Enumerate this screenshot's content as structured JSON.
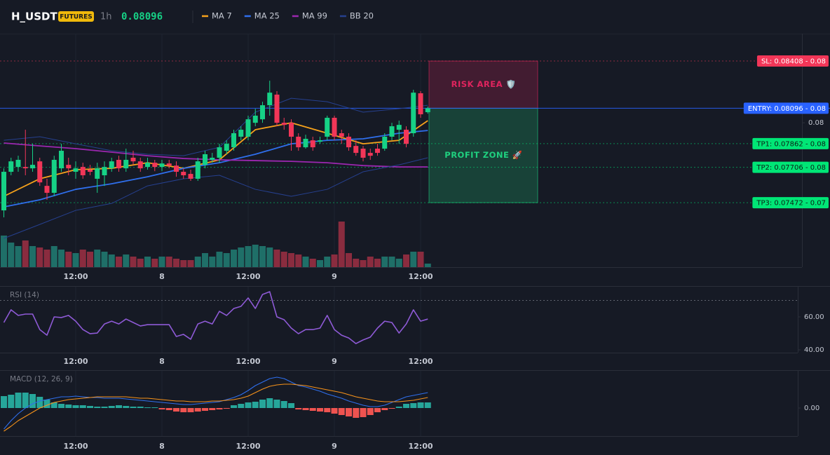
{
  "header": {
    "symbol": "H_USDT",
    "badge": "FUTURES",
    "interval": "1h",
    "last_price": 0.08096
  },
  "chart_data": [
    {
      "type": "candlestick",
      "categories": [
        null,
        null,
        null,
        null,
        null,
        null,
        null,
        null,
        null,
        null,
        "12:00",
        null,
        null,
        null,
        null,
        null,
        null,
        null,
        null,
        null,
        null,
        null,
        "8",
        null,
        null,
        null,
        null,
        null,
        null,
        null,
        null,
        null,
        null,
        null,
        "12:00",
        null,
        null,
        null,
        null,
        null,
        null,
        null,
        null,
        null,
        null,
        null,
        "9",
        null,
        null,
        null,
        null,
        null,
        null,
        null,
        null,
        null,
        null,
        null,
        "12:00",
        null
      ],
      "open": [
        0.07421,
        0.07676,
        0.07708,
        0.07708,
        0.07699,
        0.07745,
        0.07583,
        0.07537,
        0.07699,
        0.07722,
        0.07676,
        0.07708,
        0.0769,
        0.0763,
        0.07653,
        0.07699,
        0.07755,
        0.07699,
        0.07769,
        0.07745,
        0.07708,
        0.07736,
        0.07708,
        0.07731,
        0.07717,
        0.07676,
        0.07662,
        0.0763,
        0.07722,
        0.07755,
        0.07769,
        0.07815,
        0.07838,
        0.07908,
        0.07908,
        0.08,
        0.08023,
        0.08116,
        0.08186,
        0.08,
        0.08,
        0.07908,
        0.07838,
        0.07884,
        0.07875,
        0.07908,
        0.08033,
        0.07931,
        0.07908,
        0.07847,
        0.07829,
        0.07801,
        0.07829,
        0.07829,
        0.07908,
        0.07954,
        0.07954,
        0.07931,
        0.08195,
        0.0807
      ],
      "high": [
        0.07699,
        0.07769,
        0.07782,
        0.07954,
        0.07861,
        0.07769,
        0.0763,
        0.07782,
        0.07861,
        0.07769,
        0.07745,
        0.07736,
        0.07722,
        0.07736,
        0.07745,
        0.07769,
        0.07782,
        0.07829,
        0.07815,
        0.07769,
        0.07769,
        0.07755,
        0.07755,
        0.07755,
        0.07745,
        0.07699,
        0.0769,
        0.07769,
        0.07815,
        0.07801,
        0.07861,
        0.07884,
        0.07954,
        0.07977,
        0.08047,
        0.08093,
        0.08139,
        0.08278,
        0.08209,
        0.08033,
        0.08023,
        0.07931,
        0.07921,
        0.07908,
        0.07908,
        0.08047,
        0.08047,
        0.07954,
        0.07931,
        0.07884,
        0.07847,
        0.07829,
        0.07861,
        0.07931,
        0.08,
        0.08014,
        0.07977,
        0.08218,
        0.08209,
        0.08107
      ],
      "low": [
        0.07375,
        0.07653,
        0.07676,
        0.07653,
        0.07676,
        0.07583,
        0.07491,
        0.07514,
        0.07676,
        0.07653,
        0.0763,
        0.0763,
        0.07653,
        0.07537,
        0.07583,
        0.07676,
        0.07676,
        0.07676,
        0.07722,
        0.07676,
        0.0769,
        0.0768,
        0.0768,
        0.07699,
        0.07643,
        0.0763,
        0.07616,
        0.07616,
        0.07699,
        0.07736,
        0.07736,
        0.07792,
        0.07815,
        0.07884,
        0.07884,
        0.07977,
        0.08,
        0.08047,
        0.07977,
        0.07954,
        0.07815,
        0.07815,
        0.07829,
        0.07815,
        0.07861,
        0.07884,
        0.07884,
        0.07861,
        0.07815,
        0.07782,
        0.07745,
        0.07755,
        0.07782,
        0.07815,
        0.07884,
        0.07861,
        0.07838,
        0.07908,
        0.08033,
        0.0806
      ],
      "close": [
        0.07676,
        0.07745,
        0.07755,
        0.07699,
        0.07722,
        0.07606,
        0.07537,
        0.07755,
        0.07815,
        0.07699,
        0.07699,
        0.07653,
        0.07676,
        0.07699,
        0.07708,
        0.07745,
        0.07699,
        0.07755,
        0.07745,
        0.07699,
        0.07736,
        0.07708,
        0.07731,
        0.07717,
        0.07676,
        0.07653,
        0.0763,
        0.07745,
        0.07792,
        0.07769,
        0.07838,
        0.07861,
        0.07931,
        0.07954,
        0.08023,
        0.08047,
        0.08116,
        0.08199,
        0.08,
        0.07986,
        0.07908,
        0.07838,
        0.07894,
        0.07838,
        0.07884,
        0.08033,
        0.07908,
        0.07908,
        0.07838,
        0.07801,
        0.07769,
        0.07782,
        0.07801,
        0.07908,
        0.07977,
        0.07986,
        0.07861,
        0.08199,
        0.08056,
        0.08096
      ],
      "up_color": "#16d186",
      "down_color": "#f23658",
      "volume": [
        45,
        35,
        30,
        38,
        30,
        28,
        25,
        30,
        25,
        22,
        20,
        25,
        22,
        25,
        22,
        18,
        15,
        18,
        15,
        12,
        15,
        12,
        15,
        15,
        12,
        10,
        10,
        15,
        20,
        15,
        22,
        20,
        25,
        28,
        30,
        32,
        30,
        28,
        25,
        22,
        20,
        18,
        15,
        12,
        10,
        15,
        18,
        65,
        20,
        12,
        10,
        15,
        12,
        15,
        15,
        12,
        18,
        22,
        22,
        5
      ],
      "volume_lim": [
        0,
        70
      ],
      "volume_up_color": "#1f6f68",
      "volume_down_color": "#8a2c3f",
      "series": [
        {
          "name": "MA 7",
          "color": "#f7a21b",
          "x": [
            0,
            5,
            10,
            15,
            20,
            25,
            30,
            35,
            40,
            45,
            50,
            55,
            59
          ],
          "values": [
            0.07514,
            0.0763,
            0.0769,
            0.07699,
            0.07736,
            0.07699,
            0.07755,
            0.07954,
            0.08,
            0.07931,
            0.07861,
            0.07884,
            0.08014
          ]
        },
        {
          "name": "MA 25",
          "color": "#2f6fed",
          "x": [
            0,
            5,
            10,
            15,
            20,
            25,
            30,
            35,
            40,
            45,
            50,
            55,
            59
          ],
          "values": [
            0.07444,
            0.07491,
            0.0756,
            0.07597,
            0.07643,
            0.07699,
            0.07736,
            0.07792,
            0.07861,
            0.07884,
            0.07894,
            0.07931,
            0.07949
          ]
        },
        {
          "name": "MA 99",
          "color": "#9c27b0",
          "x": [
            0,
            5,
            10,
            15,
            20,
            25,
            30,
            35,
            40,
            45,
            50,
            55,
            59
          ],
          "values": [
            0.07866,
            0.07847,
            0.07829,
            0.07806,
            0.07782,
            0.07764,
            0.07755,
            0.0775,
            0.07745,
            0.07736,
            0.07717,
            0.07708,
            0.07708
          ]
        },
        {
          "name": "BB 20",
          "color": "#26408f",
          "x": [
            0,
            5,
            10,
            15,
            20,
            25,
            30,
            35,
            40,
            45,
            50,
            55,
            59
          ],
          "upper": [
            0.07884,
            0.07908,
            0.07861,
            0.07815,
            0.07792,
            0.07782,
            0.07838,
            0.0807,
            0.08162,
            0.08139,
            0.0807,
            0.08093,
            0.08116
          ],
          "lower": [
            0.07236,
            0.07328,
            0.07421,
            0.07467,
            0.07583,
            0.0763,
            0.07653,
            0.0756,
            0.07514,
            0.0756,
            0.07676,
            0.07722,
            0.07769
          ]
        }
      ],
      "ylim": [
        0.07046,
        0.08589
      ],
      "yticks": [
        0.08
      ],
      "levels": [
        {
          "value": 0.08408,
          "label": "SL: 0.08408 - 0.08",
          "color": "#f23658",
          "text_color": "#ffffff",
          "style": "dotted"
        },
        {
          "value": 0.08096,
          "label": "ENTRY: 0.08096 - 0.08",
          "color": "#2962ff",
          "text_color": "#ffffff",
          "style": "solid"
        },
        {
          "value": 0.07862,
          "label": "TP1: 0.07862 - 0.08",
          "color": "#00e676",
          "text_color": "#0b2016",
          "style": "dotted"
        },
        {
          "value": 0.07706,
          "label": "TP2: 0.07706 - 0.08",
          "color": "#00e676",
          "text_color": "#0b2016",
          "style": "dotted"
        },
        {
          "value": 0.07472,
          "label": "TP3: 0.07472 - 0.07",
          "color": "#00e676",
          "text_color": "#0b2016",
          "style": "dotted"
        }
      ],
      "zones": [
        {
          "label": "RISK AREA 🛡️",
          "from": 0.08408,
          "to": 0.08096,
          "color": "#e0245e"
        },
        {
          "label": "PROFIT ZONE 🚀",
          "from": 0.08096,
          "to": 0.07472,
          "color": "#1fd07f"
        }
      ]
    },
    {
      "type": "line",
      "title": "RSI (14)",
      "categories": [
        null,
        null,
        null,
        null,
        null,
        null,
        null,
        null,
        null,
        null,
        "12:00",
        null,
        null,
        null,
        null,
        null,
        null,
        null,
        null,
        null,
        null,
        null,
        "8",
        null,
        null,
        null,
        null,
        null,
        null,
        null,
        null,
        null,
        null,
        null,
        "12:00",
        null,
        null,
        null,
        null,
        null,
        null,
        null,
        null,
        null,
        null,
        null,
        "9",
        null,
        null,
        null,
        null,
        null,
        null,
        null,
        null,
        null,
        null,
        null,
        "12:00",
        null
      ],
      "series": [
        {
          "color": "#8e5ad6",
          "values": [
            56.6,
            64.3,
            60.9,
            61.7,
            61.7,
            52.3,
            48.9,
            60,
            59.6,
            60.9,
            57.4,
            52.3,
            49.8,
            50.2,
            55.7,
            57.4,
            55.7,
            58.7,
            56.6,
            54.5,
            55.3,
            55.3,
            55.3,
            55.3,
            48.1,
            49.4,
            46.4,
            55.7,
            57.4,
            55.7,
            63.4,
            60.9,
            65.1,
            66.4,
            71.5,
            65.1,
            73.6,
            75.3,
            60,
            58.3,
            53.2,
            49.8,
            52.3,
            52.3,
            53.2,
            60.9,
            52.3,
            48.9,
            47.2,
            43.8,
            46,
            47.7,
            53.2,
            57.4,
            56.6,
            50.2,
            55.7,
            64.3,
            57.4,
            58.7
          ]
        }
      ],
      "ylim": [
        38.3,
        78.3
      ],
      "yticks": [
        {
          "value": 40,
          "label": "40.00"
        },
        {
          "value": 60,
          "label": "60.00"
        }
      ],
      "levels": [
        70
      ]
    },
    {
      "type": "macd",
      "title": "MACD (12, 26, 9)",
      "categories": [
        null,
        null,
        null,
        null,
        null,
        null,
        null,
        null,
        null,
        null,
        "12:00",
        null,
        null,
        null,
        null,
        null,
        null,
        null,
        null,
        null,
        null,
        null,
        "8",
        null,
        null,
        null,
        null,
        null,
        null,
        null,
        null,
        null,
        null,
        null,
        "12:00",
        null,
        null,
        null,
        null,
        null,
        null,
        null,
        null,
        null,
        null,
        null,
        "9",
        null,
        null,
        null,
        null,
        null,
        null,
        null,
        null,
        null,
        null,
        null,
        "12:00",
        null
      ],
      "histogram": [
        0.00017,
        0.00019,
        0.00022,
        0.00022,
        0.0002,
        0.00016,
        0.00012,
        8e-05,
        6e-05,
        5e-05,
        4e-05,
        4e-05,
        3e-05,
        2e-05,
        2e-05,
        3e-05,
        4e-05,
        3e-05,
        2e-05,
        2e-05,
        1e-05,
        1e-05,
        -2e-05,
        -3e-05,
        -5e-05,
        -6e-05,
        -6e-05,
        -5e-05,
        -4e-05,
        -3e-05,
        -2e-05,
        -1e-05,
        4e-05,
        6e-05,
        8e-05,
        9e-05,
        0.00012,
        0.00014,
        0.00012,
        0.0001,
        7e-05,
        -2e-05,
        -3e-05,
        -4e-05,
        -5e-05,
        -6e-05,
        -8e-05,
        -0.0001,
        -0.00012,
        -0.00014,
        -0.00013,
        -0.0001,
        -6e-05,
        -3e-05,
        -1e-05,
        2e-05,
        6e-05,
        7e-05,
        8e-05,
        8e-05
      ],
      "up_color": "#26a69a",
      "down_color": "#ef5350",
      "series": [
        {
          "color": "#2f6fed",
          "values": [
            -0.0003,
            -0.00018,
            -8e-05,
            0,
            6e-05,
            0.0001,
            0.00012,
            0.00014,
            0.00016,
            0.00016,
            0.00017,
            0.00016,
            0.00015,
            0.00015,
            0.00014,
            0.00014,
            0.00014,
            0.00013,
            0.00012,
            0.00011,
            0.0001,
            9e-05,
            8e-05,
            7e-05,
            6e-05,
            5e-05,
            5e-05,
            6e-05,
            7e-05,
            8e-05,
            9e-05,
            0.00012,
            0.00015,
            0.00019,
            0.00025,
            0.00032,
            0.00037,
            0.00042,
            0.00044,
            0.00042,
            0.00037,
            0.00032,
            0.0003,
            0.00027,
            0.00024,
            0.0002,
            0.00017,
            0.00014,
            0.0001,
            7e-05,
            4e-05,
            2e-05,
            2e-05,
            4e-05,
            8e-05,
            0.00012,
            0.00016,
            0.00018,
            0.0002,
            0.00022
          ]
        },
        {
          "color": "#f7931a",
          "values": [
            -0.00033,
            -0.00026,
            -0.00018,
            -0.00012,
            -6e-05,
            0,
            4e-05,
            8e-05,
            0.0001,
            0.00012,
            0.00013,
            0.00014,
            0.00015,
            0.00016,
            0.00016,
            0.00016,
            0.00016,
            0.00016,
            0.00015,
            0.00014,
            0.00014,
            0.00013,
            0.00012,
            0.00011,
            0.0001,
            0.0001,
            9e-05,
            9e-05,
            9e-05,
            0.0001,
            0.0001,
            0.00011,
            0.00012,
            0.00014,
            0.00017,
            0.00022,
            0.00027,
            0.00031,
            0.00033,
            0.00034,
            0.00034,
            0.00033,
            0.00032,
            0.0003,
            0.00028,
            0.00026,
            0.00024,
            0.00022,
            0.00019,
            0.00016,
            0.00014,
            0.00012,
            0.0001,
            9e-05,
            9e-05,
            9e-05,
            0.0001,
            0.00011,
            0.00013,
            0.00015
          ]
        }
      ],
      "ylim": [
        -0.0004,
        0.00053
      ],
      "yticks": [
        {
          "value": 0,
          "label": "0.00"
        }
      ]
    }
  ]
}
